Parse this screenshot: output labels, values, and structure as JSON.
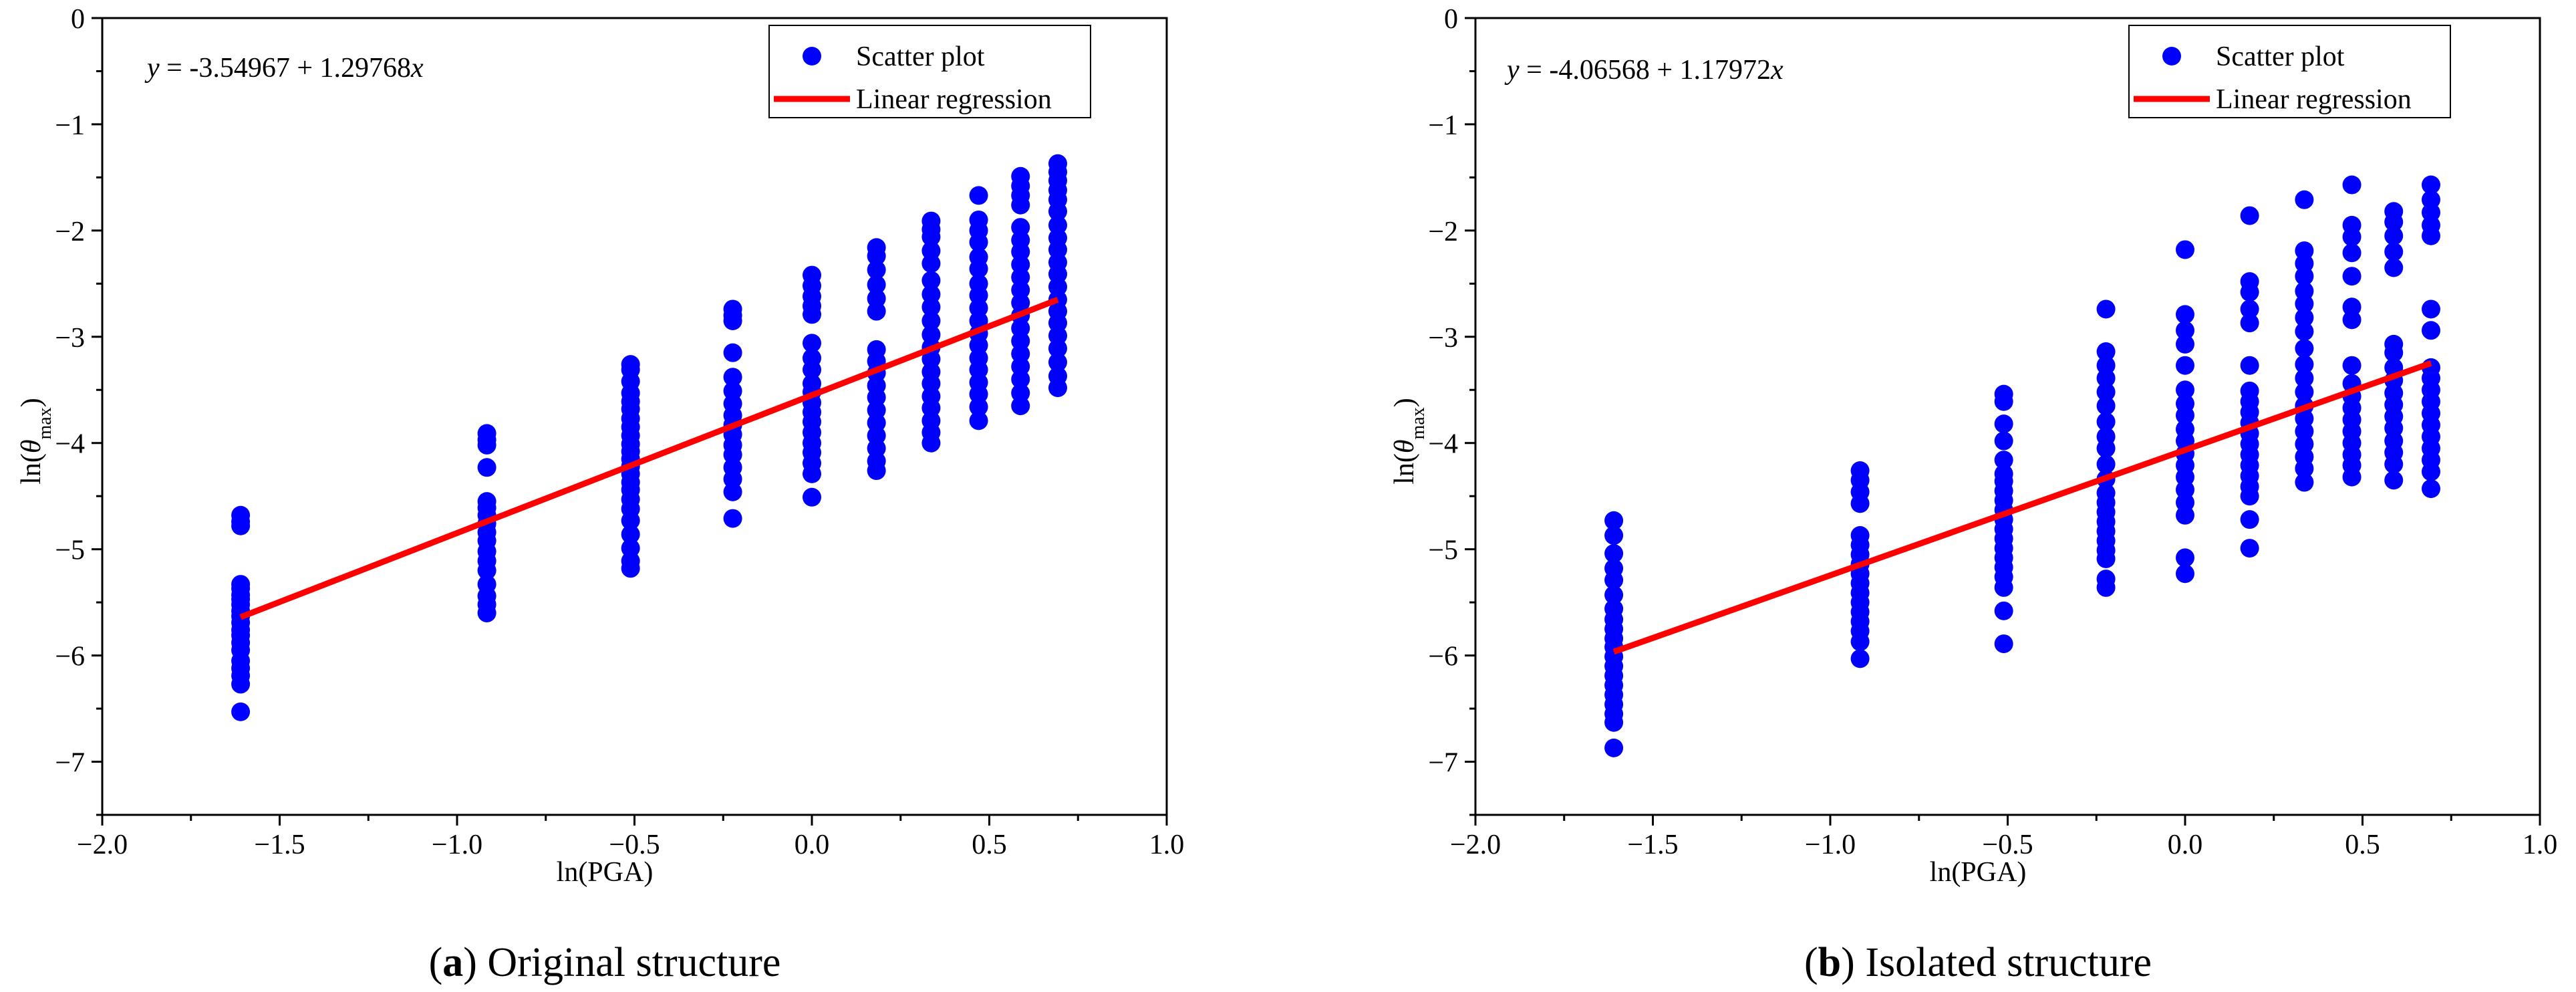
{
  "chart_data": [
    {
      "type": "scatter",
      "panel_label": "a",
      "caption": "Original structure",
      "xlabel": "ln(PGA)",
      "ylabel": {
        "prefix": "ln(",
        "symbol": "θ",
        "subscript": "max",
        "suffix": ")"
      },
      "xlim": [
        -2.0,
        1.0
      ],
      "ylim": [
        -7.5,
        0
      ],
      "xticks": [
        -2.0,
        -1.5,
        -1.0,
        -0.5,
        0.0,
        0.5,
        1.0
      ],
      "xtick_labels": [
        "−2.0",
        "−1.5",
        "−1.0",
        "−0.5",
        "0.0",
        "0.5",
        "1.0"
      ],
      "yticks": [
        0,
        -1,
        -2,
        -3,
        -4,
        -5,
        -6,
        -7
      ],
      "ytick_labels": [
        "0",
        "−1",
        "−2",
        "−3",
        "−4",
        "−5",
        "−6",
        "−7"
      ],
      "equation": {
        "prefix": "y",
        "body": " = -3.54967 + 1.29768",
        "suffix": "x"
      },
      "regression": {
        "intercept": -3.54967,
        "slope": 1.29768,
        "x_range": [
          -1.61,
          0.693
        ]
      },
      "legend": {
        "position": "top-right",
        "entries": [
          "Scatter plot",
          "Linear regression"
        ]
      },
      "series": [
        {
          "name": "Scatter plot",
          "groups": [
            {
              "x": -1.61,
              "y": [
                -4.68,
                -4.74,
                -4.78,
                -5.33,
                -5.37,
                -5.43,
                -5.47,
                -5.52,
                -5.58,
                -5.63,
                -5.69,
                -5.76,
                -5.81,
                -5.88,
                -5.95,
                -6.05,
                -6.12,
                -6.19,
                -6.27,
                -6.53
              ]
            },
            {
              "x": -0.916,
              "y": [
                -3.91,
                -3.97,
                -4.02,
                -4.23,
                -4.55,
                -4.61,
                -4.68,
                -4.76,
                -4.84,
                -4.92,
                -5.02,
                -5.11,
                -5.2,
                -5.33,
                -5.44,
                -5.52,
                -5.6
              ]
            },
            {
              "x": -0.511,
              "y": [
                -3.26,
                -3.31,
                -3.42,
                -3.53,
                -3.61,
                -3.68,
                -3.77,
                -3.85,
                -3.93,
                -4.01,
                -4.08,
                -4.15,
                -4.22,
                -4.29,
                -4.37,
                -4.44,
                -4.53,
                -4.62,
                -4.73,
                -4.86,
                -4.99,
                -5.11,
                -5.18
              ]
            },
            {
              "x": -0.223,
              "y": [
                -2.74,
                -2.8,
                -2.85,
                -3.15,
                -3.38,
                -3.51,
                -3.63,
                -3.74,
                -3.83,
                -3.92,
                -4.02,
                -4.11,
                -4.23,
                -4.34,
                -4.46,
                -4.71
              ]
            },
            {
              "x": 0.0,
              "y": [
                -2.42,
                -2.52,
                -2.62,
                -2.71,
                -2.79,
                -3.06,
                -3.2,
                -3.31,
                -3.44,
                -3.52,
                -3.62,
                -3.71,
                -3.8,
                -3.9,
                -4.0,
                -4.09,
                -4.19,
                -4.29,
                -4.51
              ]
            },
            {
              "x": 0.182,
              "y": [
                -2.16,
                -2.24,
                -2.37,
                -2.51,
                -2.64,
                -2.76,
                -3.12,
                -3.23,
                -3.34,
                -3.46,
                -3.57,
                -3.69,
                -3.81,
                -3.93,
                -4.05,
                -4.17,
                -4.26
              ]
            },
            {
              "x": 0.336,
              "y": [
                -1.91,
                -1.99,
                -2.06,
                -2.19,
                -2.31,
                -2.47,
                -2.6,
                -2.72,
                -2.85,
                -2.98,
                -3.1,
                -3.21,
                -3.33,
                -3.44,
                -3.56,
                -3.67,
                -3.79,
                -3.9,
                -4.0
              ]
            },
            {
              "x": 0.47,
              "y": [
                -1.67,
                -1.9,
                -2.0,
                -2.11,
                -2.25,
                -2.36,
                -2.5,
                -2.61,
                -2.73,
                -2.85,
                -2.97,
                -3.08,
                -3.2,
                -3.31,
                -3.43,
                -3.54,
                -3.66,
                -3.79
              ]
            },
            {
              "x": 0.588,
              "y": [
                -1.49,
                -1.58,
                -1.67,
                -1.76,
                -1.97,
                -2.09,
                -2.2,
                -2.32,
                -2.44,
                -2.56,
                -2.68,
                -2.8,
                -2.92,
                -3.04,
                -3.16,
                -3.28,
                -3.4,
                -3.53,
                -3.65
              ]
            },
            {
              "x": 0.693,
              "y": [
                -1.37,
                -1.45,
                -1.53,
                -1.62,
                -1.71,
                -1.82,
                -1.95,
                -2.07,
                -2.18,
                -2.3,
                -2.41,
                -2.53,
                -2.65,
                -2.76,
                -2.87,
                -2.99,
                -3.11,
                -3.24,
                -3.37,
                -3.48
              ]
            }
          ]
        }
      ]
    },
    {
      "type": "scatter",
      "panel_label": "b",
      "caption": "Isolated structure",
      "xlabel": "ln(PGA)",
      "ylabel": {
        "prefix": "ln(",
        "symbol": "θ",
        "subscript": "max",
        "suffix": ")"
      },
      "xlim": [
        -2.0,
        1.0
      ],
      "ylim": [
        -7.5,
        0
      ],
      "xticks": [
        -2.0,
        -1.5,
        -1.0,
        -0.5,
        0.0,
        0.5,
        1.0
      ],
      "xtick_labels": [
        "−2.0",
        "−1.5",
        "−1.0",
        "−0.5",
        "0.0",
        "0.5",
        "1.0"
      ],
      "yticks": [
        0,
        -1,
        -2,
        -3,
        -4,
        -5,
        -6,
        -7
      ],
      "ytick_labels": [
        "0",
        "−1",
        "−2",
        "−3",
        "−4",
        "−5",
        "−6",
        "−7"
      ],
      "equation": {
        "prefix": "y",
        "body": " = -4.06568 + 1.17972",
        "suffix": "x"
      },
      "regression": {
        "intercept": -4.06568,
        "slope": 1.17972,
        "x_range": [
          -1.61,
          0.693
        ]
      },
      "legend": {
        "position": "top-right",
        "entries": [
          "Scatter plot",
          "Linear regression"
        ]
      },
      "series": [
        {
          "name": "Scatter plot",
          "groups": [
            {
              "x": -1.61,
              "y": [
                -4.73,
                -4.87,
                -5.04,
                -5.18,
                -5.29,
                -5.43,
                -5.56,
                -5.66,
                -5.75,
                -5.84,
                -5.92,
                -6.01,
                -6.1,
                -6.19,
                -6.28,
                -6.37,
                -6.46,
                -6.55,
                -6.63,
                -6.87
              ]
            },
            {
              "x": -0.916,
              "y": [
                -4.26,
                -4.35,
                -4.46,
                -4.57,
                -4.87,
                -4.96,
                -5.05,
                -5.14,
                -5.23,
                -5.32,
                -5.41,
                -5.5,
                -5.59,
                -5.68,
                -5.77,
                -5.87,
                -6.03
              ]
            },
            {
              "x": -0.511,
              "y": [
                -3.54,
                -3.61,
                -3.82,
                -3.98,
                -4.16,
                -4.29,
                -4.36,
                -4.45,
                -4.54,
                -4.63,
                -4.72,
                -4.81,
                -4.9,
                -4.99,
                -5.08,
                -5.17,
                -5.26,
                -5.36,
                -5.58,
                -5.89
              ]
            },
            {
              "x": -0.223,
              "y": [
                -2.74,
                -3.14,
                -3.27,
                -3.39,
                -3.52,
                -3.65,
                -3.8,
                -3.94,
                -4.05,
                -4.2,
                -4.34,
                -4.47,
                -4.56,
                -4.65,
                -4.74,
                -4.83,
                -4.92,
                -5.01,
                -5.09,
                -5.28,
                -5.36
              ]
            },
            {
              "x": 0.0,
              "y": [
                -2.18,
                -2.79,
                -2.94,
                -3.07,
                -3.27,
                -3.5,
                -3.63,
                -3.74,
                -3.87,
                -3.98,
                -4.1,
                -4.21,
                -4.32,
                -4.44,
                -4.56,
                -4.68,
                -5.08,
                -5.23
              ]
            },
            {
              "x": 0.182,
              "y": [
                -1.86,
                -2.48,
                -2.58,
                -2.74,
                -2.87,
                -3.27,
                -3.51,
                -3.61,
                -3.71,
                -3.81,
                -3.91,
                -4.01,
                -4.11,
                -4.21,
                -4.31,
                -4.41,
                -4.5,
                -4.72,
                -4.99
              ]
            },
            {
              "x": 0.336,
              "y": [
                -1.71,
                -2.19,
                -2.31,
                -2.43,
                -2.57,
                -2.69,
                -2.82,
                -2.95,
                -3.11,
                -3.26,
                -3.39,
                -3.52,
                -3.65,
                -3.77,
                -3.89,
                -4.01,
                -4.13,
                -4.24,
                -4.37
              ]
            },
            {
              "x": 0.47,
              "y": [
                -1.57,
                -1.95,
                -2.06,
                -2.21,
                -2.43,
                -2.72,
                -2.84,
                -3.27,
                -3.44,
                -3.56,
                -3.67,
                -3.78,
                -3.89,
                -4.0,
                -4.11,
                -4.21,
                -4.32
              ]
            },
            {
              "x": 0.588,
              "y": [
                -1.82,
                -1.92,
                -2.05,
                -2.2,
                -2.35,
                -3.07,
                -3.15,
                -3.29,
                -3.41,
                -3.53,
                -3.64,
                -3.75,
                -3.86,
                -3.98,
                -4.09,
                -4.2,
                -4.35
              ]
            },
            {
              "x": 0.693,
              "y": [
                -1.57,
                -1.71,
                -1.83,
                -1.95,
                -2.05,
                -2.74,
                -2.94,
                -3.29,
                -3.39,
                -3.5,
                -3.61,
                -3.72,
                -3.83,
                -3.94,
                -4.05,
                -4.16,
                -4.27,
                -4.43
              ]
            }
          ]
        }
      ]
    }
  ],
  "colors": {
    "points": "#0000ff",
    "line": "#ff0000",
    "axis": "#000000"
  }
}
